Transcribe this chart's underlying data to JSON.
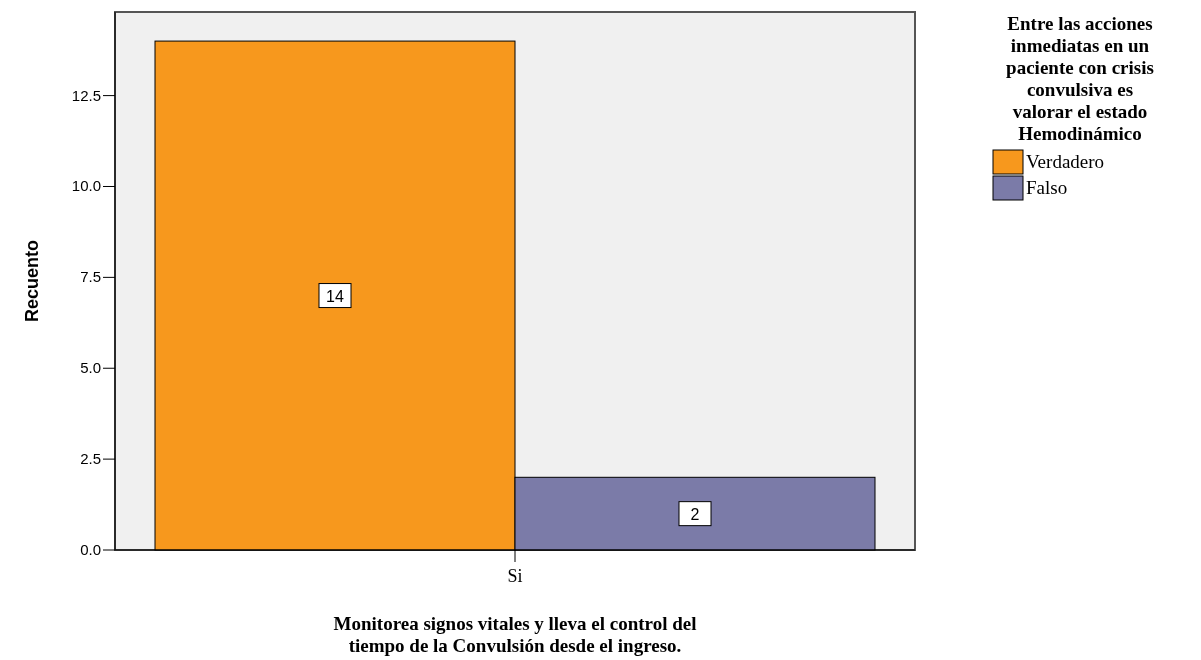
{
  "chart_data": {
    "type": "bar",
    "categories": [
      "Si"
    ],
    "series": [
      {
        "name": "Verdadero",
        "color": "#f7981d",
        "values": [
          14
        ]
      },
      {
        "name": "Falso",
        "color": "#7b7ba8",
        "values": [
          2
        ]
      }
    ],
    "ylim": [
      0,
      14.8
    ],
    "yticks": [
      {
        "value": 0,
        "label": "0.0"
      },
      {
        "value": 2.5,
        "label": "2.5"
      },
      {
        "value": 5,
        "label": "5.0"
      },
      {
        "value": 7.5,
        "label": "7.5"
      },
      {
        "value": 10,
        "label": "10.0"
      },
      {
        "value": 12.5,
        "label": "12.5"
      }
    ],
    "xlabel": "Monitorea signos vitales y lleva el control del tiempo de la Convulsión desde el ingreso.",
    "ylabel": "Recuento",
    "legend_title": "Entre las acciones inmediatas en un paciente con crisis convulsiva es valorar el estado Hemodinámico",
    "legend": "right",
    "data_labels": true,
    "grid": false
  }
}
